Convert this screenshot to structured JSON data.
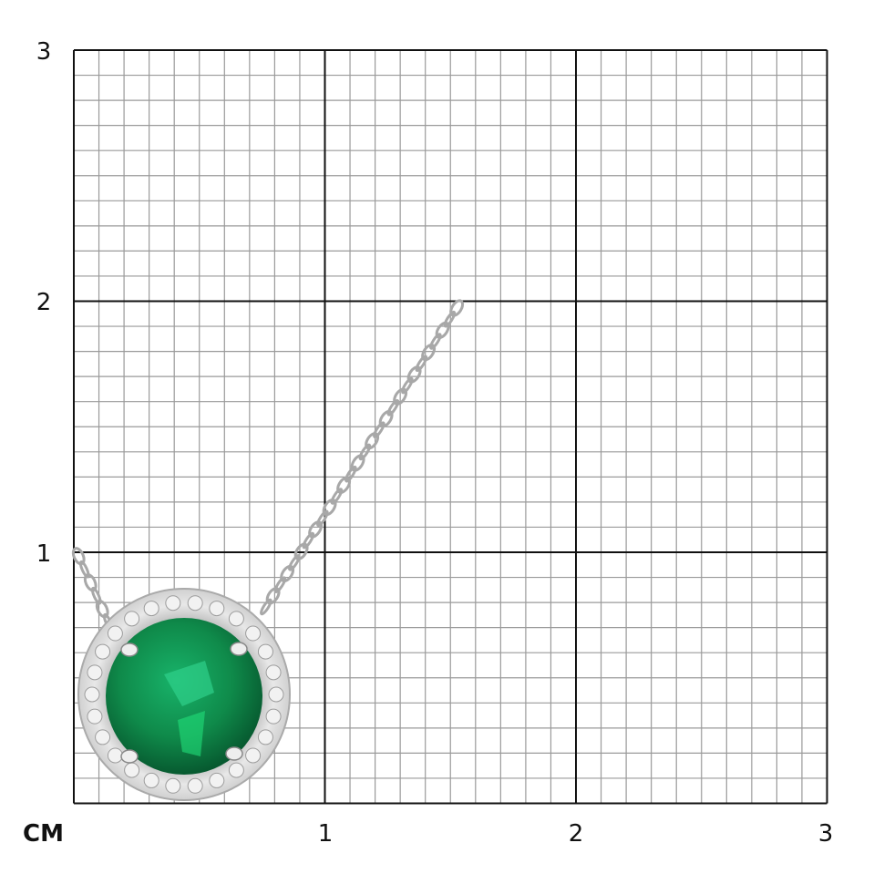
{
  "unit_label": "CM",
  "x_ticks": [
    "1",
    "2",
    "3"
  ],
  "y_ticks": [
    "1",
    "2",
    "3"
  ],
  "grid": {
    "range_cm": 3,
    "subdivisions_per_cm": 10
  },
  "colors": {
    "major_line": "#111111",
    "minor_line": "#9a9a9a",
    "emerald": "#0f8a4a",
    "metal": "#c9c9c9"
  }
}
